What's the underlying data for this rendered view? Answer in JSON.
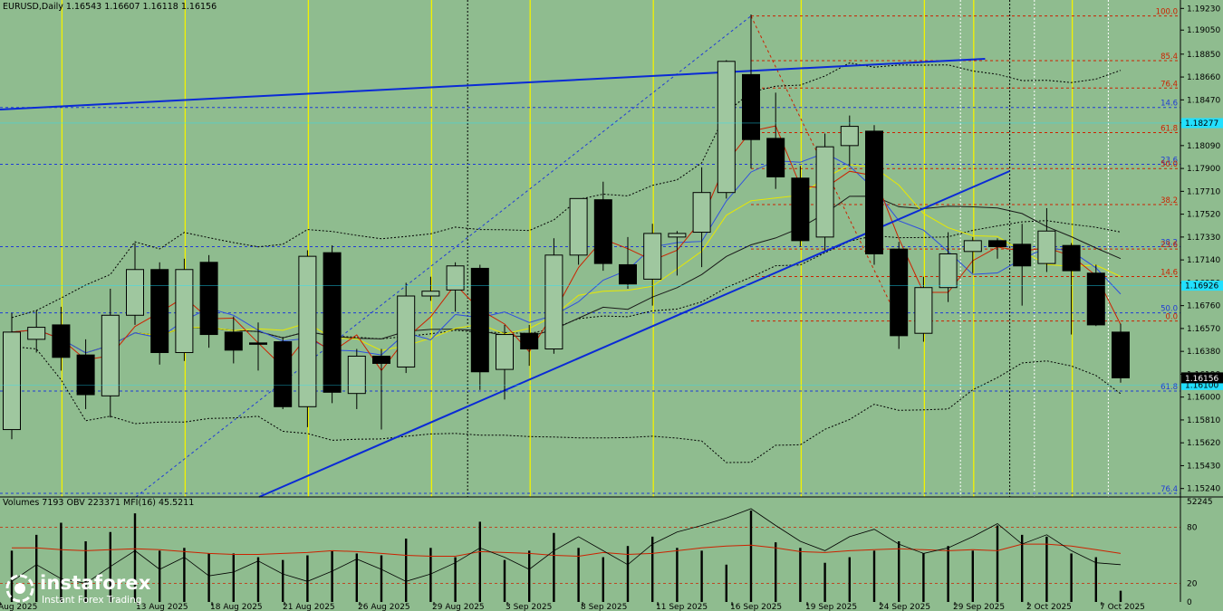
{
  "header": {
    "symbol_label": "EURUSD,Daily  1.16543 1.16607 1.16118 1.16156"
  },
  "sub_header": {
    "indicator_label": "Volumes 7193  OBV 223371  MFI(16) 45.5211"
  },
  "brand": {
    "name": "instaforex",
    "tagline": "Instant Forex Trading"
  },
  "colors": {
    "background": "#8fbc8f",
    "bull_candle": "#9fc79f",
    "bear_candle": "#000000",
    "fib_red": "#cc2200",
    "fib_blue": "#1f3bd6",
    "trendline": "#0a2ad6",
    "vertical_yellow": "#f2f200",
    "current_price_box": "#000000",
    "cyan_marker": "#22e0ff"
  },
  "chart_data": [
    {
      "type": "candlestick",
      "title": "EURUSD,Daily",
      "y_ticks": [
        "1.19230",
        "1.19050",
        "1.18850",
        "1.18660",
        "1.18470",
        "1.18280",
        "1.18090",
        "1.17900",
        "1.17710",
        "1.17520",
        "1.17330",
        "1.17140",
        "1.16950",
        "1.16760",
        "1.16570",
        "1.16380",
        "1.16190",
        "1.16000",
        "1.15810",
        "1.15620",
        "1.15430",
        "1.15240"
      ],
      "ylim": [
        1.1517,
        1.193
      ],
      "x_tick_labels": [
        "Aug 2025",
        "13 Aug 2025",
        "18 Aug 2025",
        "21 Aug 2025",
        "26 Aug 2025",
        "29 Aug 2025",
        "3 Sep 2025",
        "8 Sep 2025",
        "11 Sep 2025",
        "16 Sep 2025",
        "19 Sep 2025",
        "24 Sep 2025",
        "29 Sep 2025",
        "2 Oct 2025",
        "7 Oct 2025"
      ],
      "current_price_label": "1.16156",
      "cyan_price_labels": [
        "1.18277",
        "1.16926",
        "1.16100"
      ],
      "cyan_price_values": [
        1.18277,
        1.16926,
        1.161
      ],
      "candles": [
        {
          "o": 1.1573,
          "h": 1.167,
          "l": 1.1565,
          "c": 1.1654
        },
        {
          "o": 1.1648,
          "h": 1.1672,
          "l": 1.1637,
          "c": 1.1658
        },
        {
          "o": 1.166,
          "h": 1.1675,
          "l": 1.1622,
          "c": 1.1633
        },
        {
          "o": 1.1635,
          "h": 1.1648,
          "l": 1.159,
          "c": 1.1602
        },
        {
          "o": 1.1601,
          "h": 1.169,
          "l": 1.1583,
          "c": 1.1668
        },
        {
          "o": 1.1668,
          "h": 1.1728,
          "l": 1.166,
          "c": 1.1706
        },
        {
          "o": 1.1706,
          "h": 1.1712,
          "l": 1.1627,
          "c": 1.1637
        },
        {
          "o": 1.1637,
          "h": 1.1715,
          "l": 1.163,
          "c": 1.1706
        },
        {
          "o": 1.1712,
          "h": 1.1718,
          "l": 1.1641,
          "c": 1.1652
        },
        {
          "o": 1.1654,
          "h": 1.1667,
          "l": 1.1628,
          "c": 1.1639
        },
        {
          "o": 1.1645,
          "h": 1.1662,
          "l": 1.1622,
          "c": 1.1644
        },
        {
          "o": 1.1646,
          "h": 1.165,
          "l": 1.159,
          "c": 1.1592
        },
        {
          "o": 1.1592,
          "h": 1.1722,
          "l": 1.1575,
          "c": 1.1717
        },
        {
          "o": 1.172,
          "h": 1.1726,
          "l": 1.1595,
          "c": 1.1604
        },
        {
          "o": 1.1603,
          "h": 1.164,
          "l": 1.159,
          "c": 1.1634
        },
        {
          "o": 1.1634,
          "h": 1.164,
          "l": 1.1573,
          "c": 1.1628
        },
        {
          "o": 1.1625,
          "h": 1.1695,
          "l": 1.162,
          "c": 1.1684
        },
        {
          "o": 1.1684,
          "h": 1.17,
          "l": 1.168,
          "c": 1.1688
        },
        {
          "o": 1.1689,
          "h": 1.1712,
          "l": 1.1671,
          "c": 1.1709
        },
        {
          "o": 1.1707,
          "h": 1.171,
          "l": 1.1606,
          "c": 1.1621
        },
        {
          "o": 1.1623,
          "h": 1.166,
          "l": 1.1598,
          "c": 1.1652
        },
        {
          "o": 1.1653,
          "h": 1.166,
          "l": 1.1626,
          "c": 1.164
        },
        {
          "o": 1.164,
          "h": 1.1732,
          "l": 1.1636,
          "c": 1.1718
        },
        {
          "o": 1.1718,
          "h": 1.1764,
          "l": 1.171,
          "c": 1.1765
        },
        {
          "o": 1.1764,
          "h": 1.1779,
          "l": 1.1705,
          "c": 1.1711
        },
        {
          "o": 1.171,
          "h": 1.1733,
          "l": 1.169,
          "c": 1.1694
        },
        {
          "o": 1.1698,
          "h": 1.1744,
          "l": 1.1676,
          "c": 1.1736
        },
        {
          "o": 1.1733,
          "h": 1.1738,
          "l": 1.1701,
          "c": 1.1736
        },
        {
          "o": 1.1737,
          "h": 1.1791,
          "l": 1.1708,
          "c": 1.177
        },
        {
          "o": 1.177,
          "h": 1.188,
          "l": 1.1765,
          "c": 1.1879
        },
        {
          "o": 1.1868,
          "h": 1.1918,
          "l": 1.179,
          "c": 1.1814
        },
        {
          "o": 1.1815,
          "h": 1.1853,
          "l": 1.1773,
          "c": 1.1783
        },
        {
          "o": 1.1782,
          "h": 1.1792,
          "l": 1.1725,
          "c": 1.173
        },
        {
          "o": 1.1733,
          "h": 1.1819,
          "l": 1.1722,
          "c": 1.1808
        },
        {
          "o": 1.1809,
          "h": 1.1834,
          "l": 1.1792,
          "c": 1.1825
        },
        {
          "o": 1.1821,
          "h": 1.1826,
          "l": 1.171,
          "c": 1.1719
        },
        {
          "o": 1.1723,
          "h": 1.1729,
          "l": 1.164,
          "c": 1.1651
        },
        {
          "o": 1.1653,
          "h": 1.17,
          "l": 1.1646,
          "c": 1.1691
        },
        {
          "o": 1.1691,
          "h": 1.1737,
          "l": 1.1679,
          "c": 1.1719
        },
        {
          "o": 1.1721,
          "h": 1.1733,
          "l": 1.1703,
          "c": 1.173
        },
        {
          "o": 1.173,
          "h": 1.1732,
          "l": 1.1715,
          "c": 1.1725
        },
        {
          "o": 1.1727,
          "h": 1.1744,
          "l": 1.1676,
          "c": 1.1709
        },
        {
          "o": 1.1711,
          "h": 1.1757,
          "l": 1.1704,
          "c": 1.1738
        },
        {
          "o": 1.1726,
          "h": 1.1728,
          "l": 1.1652,
          "c": 1.1705
        },
        {
          "o": 1.1703,
          "h": 1.171,
          "l": 1.1659,
          "c": 1.166
        },
        {
          "o": 1.1654,
          "h": 1.1661,
          "l": 1.1612,
          "c": 1.1616
        }
      ],
      "fib_levels_red": [
        {
          "label": "100.0",
          "value": 1.19167
        },
        {
          "label": "85.4",
          "value": 1.18796
        },
        {
          "label": "76.4",
          "value": 1.18568
        },
        {
          "label": "61.8",
          "value": 1.18198
        },
        {
          "label": "50.0",
          "value": 1.17899
        },
        {
          "label": "38.2",
          "value": 1.176
        },
        {
          "label": "23.6",
          "value": 1.1723
        },
        {
          "label": "14.6",
          "value": 1.17002
        },
        {
          "label": "0.0",
          "value": 1.16632
        }
      ],
      "fib_levels_blue": [
        {
          "label": "14.6",
          "value": 1.18407
        },
        {
          "label": "23.6",
          "value": 1.17935
        },
        {
          "label": "38.2",
          "value": 1.1725
        },
        {
          "label": "50.0",
          "value": 1.167
        },
        {
          "label": "61.8",
          "value": 1.1605
        },
        {
          "label": "76.4",
          "value": 1.152
        }
      ]
    },
    {
      "type": "bar",
      "title": "Volumes / OBV / MFI(16)",
      "y_tick_labels": [
        "52245",
        "80",
        "20",
        "0"
      ],
      "mfi_ylim": [
        0,
        100
      ],
      "volumes": [
        0.55,
        0.72,
        0.85,
        0.65,
        0.75,
        0.95,
        0.55,
        0.58,
        0.52,
        0.52,
        0.48,
        0.45,
        0.5,
        0.55,
        0.52,
        0.5,
        0.68,
        0.58,
        0.48,
        0.86,
        0.45,
        0.55,
        0.74,
        0.58,
        0.48,
        0.6,
        0.7,
        0.58,
        0.55,
        0.4,
        0.98,
        0.64,
        0.58,
        0.42,
        0.48,
        0.55,
        0.65,
        0.52,
        0.6,
        0.55,
        0.82,
        0.72,
        0.7,
        0.52,
        0.48,
        0.12
      ],
      "mfi": [
        58,
        58,
        56,
        55,
        56,
        57,
        56,
        54,
        52,
        51,
        51,
        52,
        53,
        55,
        54,
        52,
        50,
        49,
        49,
        54,
        53,
        52,
        50,
        49,
        53,
        51,
        52,
        55,
        58,
        60,
        61,
        58,
        54,
        53,
        55,
        56,
        57,
        56,
        55,
        56,
        55,
        62,
        62,
        60,
        56,
        52
      ],
      "obv": [
        22,
        40,
        25,
        20,
        38,
        55,
        35,
        48,
        28,
        32,
        44,
        30,
        22,
        33,
        46,
        35,
        22,
        30,
        42,
        58,
        48,
        35,
        55,
        70,
        55,
        40,
        62,
        75,
        82,
        90,
        100,
        82,
        65,
        55,
        70,
        78,
        62,
        52,
        58,
        70,
        84,
        62,
        72,
        55,
        42,
        40
      ]
    }
  ]
}
